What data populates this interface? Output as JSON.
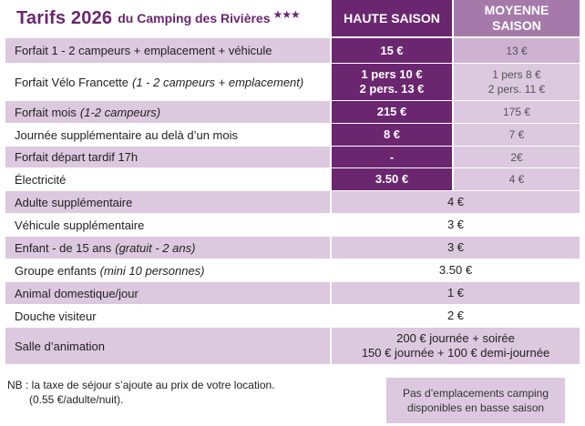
{
  "header": {
    "title_main": "Tarifs 2026",
    "title_sub": "du Camping des Rivières",
    "title_stars": "★★★",
    "col_haute": "HAUTE SAISON",
    "col_moyenne_line1": "MOYENNE",
    "col_moyenne_line2": "SAISON"
  },
  "rows": [
    {
      "label": "Forfait 1 - 2 campeurs + emplacement + véhicule",
      "label_italic": "",
      "haute": "15 €",
      "haute2": "",
      "moyenne": "13 €",
      "moyenne2": ""
    },
    {
      "label": "Forfait Vélo Francette",
      "label_italic": "(1 - 2 campeurs + emplacement)",
      "haute": "1 pers 10 €",
      "haute2": "2 pers. 13 €",
      "moyenne": "1 pers 8 €",
      "moyenne2": "2 pers. 11 €"
    },
    {
      "label": "Forfait mois",
      "label_italic": "(1-2 campeurs)",
      "haute": "215 €",
      "haute2": "",
      "moyenne": "175 €",
      "moyenne2": ""
    },
    {
      "label": "Journée supplémentaire au delà d’un mois",
      "label_italic": "",
      "haute": "8 €",
      "haute2": "",
      "moyenne": "7 €",
      "moyenne2": ""
    },
    {
      "label": "Forfait départ tardif 17h",
      "label_italic": "",
      "haute": "-",
      "haute2": "",
      "moyenne": "2€",
      "moyenne2": ""
    },
    {
      "label": "Électricité",
      "label_italic": "",
      "haute": "3.50 €",
      "haute2": "",
      "moyenne": "4 €",
      "moyenne2": ""
    }
  ],
  "merged_rows": [
    {
      "label": "Adulte supplémentaire",
      "label_italic": "",
      "value": "4 €",
      "value2": ""
    },
    {
      "label": "Véhicule supplémentaire",
      "label_italic": "",
      "value": "3 €",
      "value2": ""
    },
    {
      "label": "Enfant - de 15 ans",
      "label_italic": "(gratuit - 2 ans)",
      "value": "3 €",
      "value2": ""
    },
    {
      "label": "Groupe enfants",
      "label_italic": "(mini 10 personnes)",
      "value": "3.50 €",
      "value2": ""
    },
    {
      "label": "Animal domestique/jour",
      "label_italic": "",
      "value": "1 €",
      "value2": ""
    },
    {
      "label": "Douche visiteur",
      "label_italic": "",
      "value": "2 €",
      "value2": ""
    },
    {
      "label": "Salle d’animation",
      "label_italic": "",
      "value": "200 € journée + soirée",
      "value2": "150 € journée + 100 € demi-journée"
    }
  ],
  "footer": {
    "note_line1": "NB : la taxe de séjour s’ajoute au prix de votre location.",
    "note_line2": "(0.55 €/adulte/nuit).",
    "box_line1": "Pas d’emplacements camping",
    "box_line2": "disponibles en basse saison"
  },
  "colors": {
    "primary": "#6b2670",
    "secondary": "#a57aab",
    "light": "#dcc8df"
  }
}
